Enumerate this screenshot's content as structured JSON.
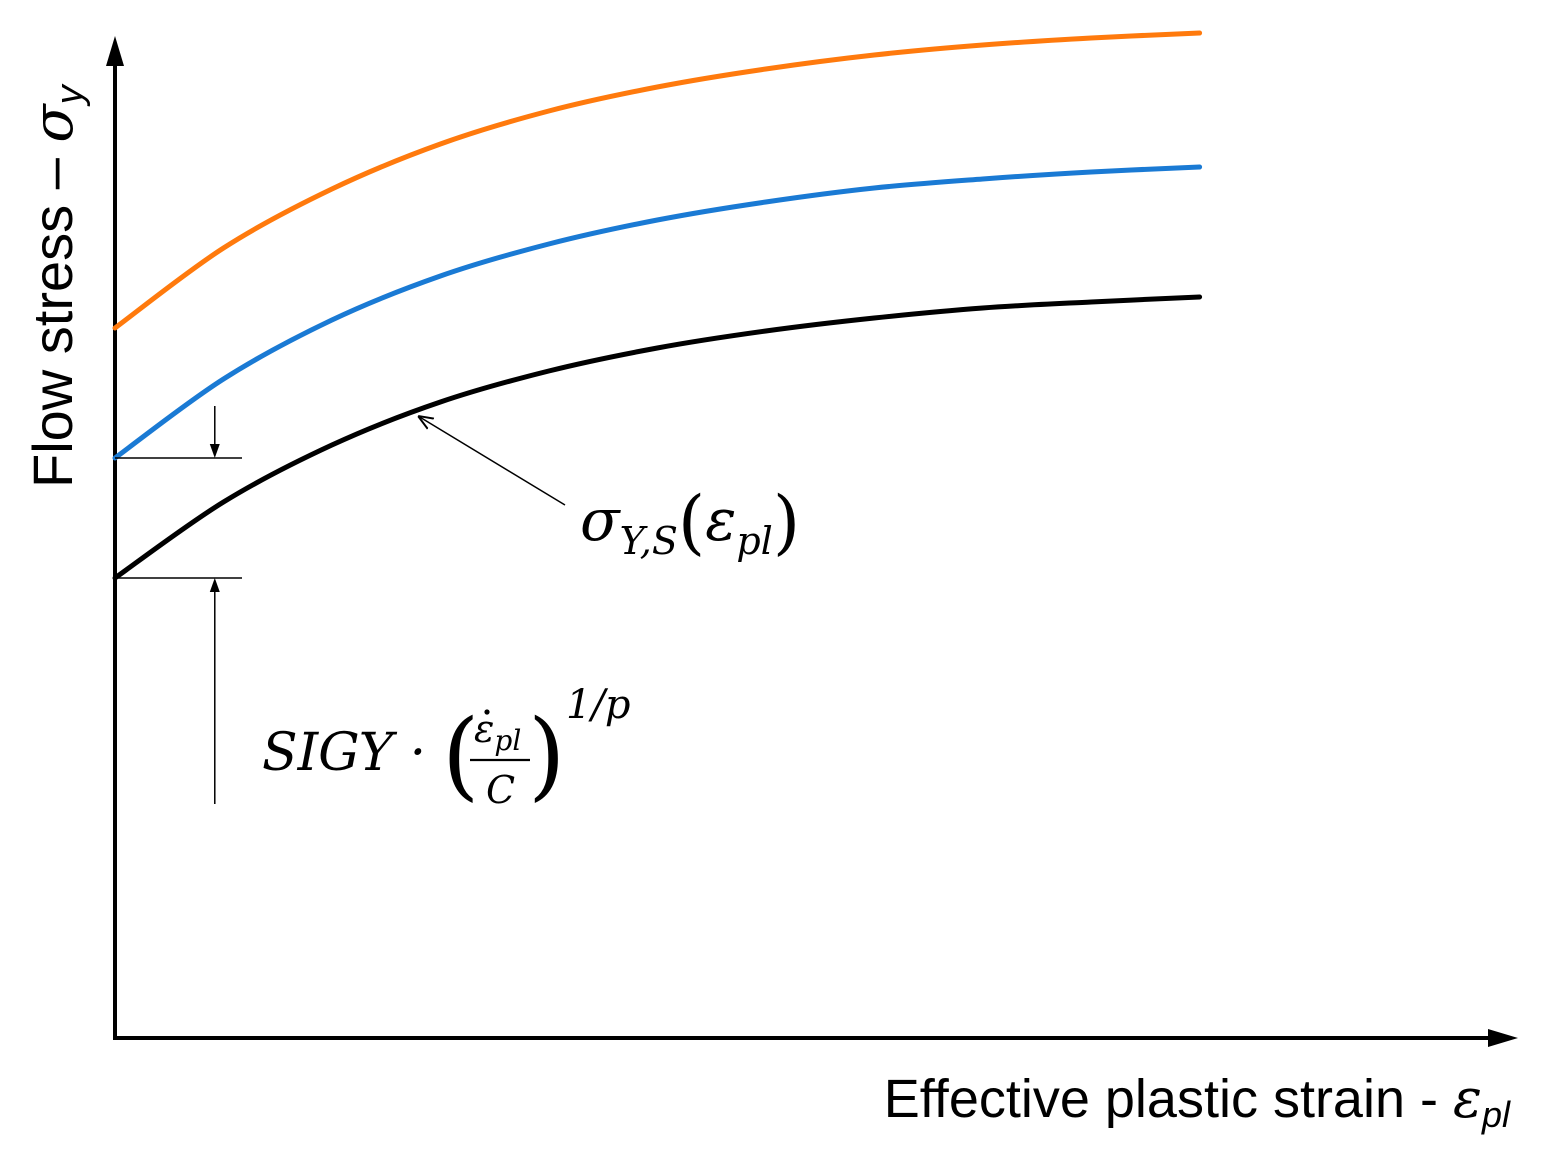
{
  "chart_data": {
    "type": "line",
    "xlabel": "Effective plastic strain - ",
    "xlabel_symbol": "ε",
    "xlabel_sub": "pl",
    "ylabel": "Flow stress – ",
    "ylabel_symbol": "σ",
    "ylabel_sub": "y",
    "xlim": [
      0,
      1.3
    ],
    "ylim": [
      0,
      1
    ],
    "series": [
      {
        "color": "#000000",
        "x": [
          0,
          0.1,
          0.2,
          0.3,
          0.4,
          0.5,
          0.6,
          0.7,
          0.8,
          0.9,
          1.0
        ],
        "values": [
          0.46,
          0.536,
          0.593,
          0.636,
          0.667,
          0.69,
          0.707,
          0.72,
          0.73,
          0.736,
          0.741
        ]
      },
      {
        "color": "#1a7ad4",
        "x": [
          0,
          0.1,
          0.2,
          0.3,
          0.4,
          0.5,
          0.6,
          0.7,
          0.8,
          0.9,
          1.0
        ],
        "values": [
          0.58,
          0.659,
          0.718,
          0.762,
          0.794,
          0.818,
          0.836,
          0.85,
          0.859,
          0.866,
          0.871
        ]
      },
      {
        "color": "#ff7a0d",
        "x": [
          0,
          0.1,
          0.2,
          0.3,
          0.4,
          0.5,
          0.6,
          0.7,
          0.8,
          0.9,
          1.0
        ],
        "values": [
          0.71,
          0.79,
          0.849,
          0.894,
          0.927,
          0.951,
          0.969,
          0.983,
          0.993,
          1.0,
          1.005
        ]
      }
    ],
    "annotations": [
      {
        "id": "sigma-ys",
        "symbol": "σ",
        "sub": "Y,S",
        "open": "(",
        "arg": "ε",
        "arg_sub": "pl",
        "close": ")",
        "points_to": {
          "x": 0.275,
          "series": 0
        }
      },
      {
        "id": "rate-term",
        "prefix": "SIGY · ",
        "open": "(",
        "numerator": "ε",
        "numerator_sub": "pl",
        "denominator": "C",
        "close": ")",
        "exponent": "1/p",
        "dimension_x": 0.092
      }
    ],
    "grid": false,
    "legend": "none"
  }
}
